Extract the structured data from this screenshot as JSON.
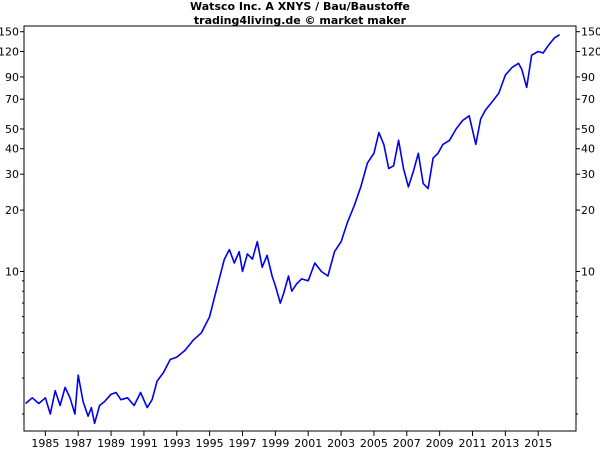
{
  "chart_data": {
    "type": "line",
    "title": "Watsco Inc. A XNYS / Bau/Baustoffe",
    "subtitle": "trading4living.de © market maker",
    "y_scale": "log",
    "xlim": [
      1983.7,
      2017.3
    ],
    "ylim": [
      1.65,
      160
    ],
    "x_ticks": [
      1985,
      1987,
      1989,
      1991,
      1993,
      1995,
      1997,
      1999,
      2001,
      2003,
      2005,
      2007,
      2009,
      2011,
      2013,
      2015
    ],
    "y_ticks": [
      10,
      20,
      30,
      40,
      50,
      70,
      90,
      120,
      150
    ],
    "grid": false,
    "series": [
      {
        "color": "#0000ee",
        "x": [
          1983.8,
          1984.2,
          1984.6,
          1985.0,
          1985.3,
          1985.6,
          1985.9,
          1986.2,
          1986.5,
          1986.8,
          1987.0,
          1987.3,
          1987.6,
          1987.8,
          1988.0,
          1988.3,
          1988.6,
          1989.0,
          1989.3,
          1989.6,
          1990.0,
          1990.4,
          1990.8,
          1991.2,
          1991.5,
          1991.8,
          1992.2,
          1992.6,
          1993.0,
          1993.5,
          1994.0,
          1994.5,
          1995.0,
          1995.3,
          1995.6,
          1995.9,
          1996.2,
          1996.5,
          1996.8,
          1997.0,
          1997.3,
          1997.6,
          1997.9,
          1998.2,
          1998.5,
          1998.8,
          1999.0,
          1999.3,
          1999.5,
          1999.8,
          2000.0,
          2000.3,
          2000.6,
          2001.0,
          2001.4,
          2001.8,
          2002.2,
          2002.6,
          2003.0,
          2003.4,
          2003.8,
          2004.2,
          2004.6,
          2005.0,
          2005.3,
          2005.6,
          2005.9,
          2006.2,
          2006.5,
          2006.8,
          2007.1,
          2007.4,
          2007.7,
          2008.0,
          2008.3,
          2008.6,
          2008.9,
          2009.2,
          2009.6,
          2010.0,
          2010.4,
          2010.8,
          2011.2,
          2011.5,
          2011.8,
          2012.2,
          2012.6,
          2013.0,
          2013.4,
          2013.8,
          2014.0,
          2014.3,
          2014.6,
          2015.0,
          2015.3,
          2015.6,
          2016.0,
          2016.3
        ],
        "y": [
          2.25,
          2.4,
          2.25,
          2.4,
          2.0,
          2.6,
          2.2,
          2.7,
          2.4,
          2.0,
          3.1,
          2.3,
          1.95,
          2.15,
          1.8,
          2.2,
          2.3,
          2.5,
          2.55,
          2.35,
          2.4,
          2.2,
          2.55,
          2.15,
          2.35,
          2.9,
          3.2,
          3.7,
          3.8,
          4.1,
          4.6,
          5.0,
          6.0,
          7.5,
          9.3,
          11.5,
          12.8,
          11.0,
          12.5,
          10.0,
          12.2,
          11.5,
          14.0,
          10.5,
          12.0,
          9.5,
          8.5,
          7.0,
          7.8,
          9.5,
          8.0,
          8.7,
          9.2,
          9.0,
          11.0,
          10.0,
          9.5,
          12.5,
          14.0,
          17.5,
          21.0,
          26.0,
          34.0,
          38.0,
          48.0,
          42.0,
          32.0,
          33.0,
          44.0,
          32.0,
          26.0,
          31.0,
          38.0,
          27.0,
          25.5,
          36.0,
          38.0,
          42.0,
          44.0,
          50.0,
          55.0,
          58.0,
          42.0,
          56.0,
          62.0,
          68.0,
          75.0,
          92.0,
          100.0,
          105.0,
          98.0,
          80.0,
          115.0,
          120.0,
          118.0,
          128.0,
          140.0,
          145.0
        ]
      }
    ]
  }
}
